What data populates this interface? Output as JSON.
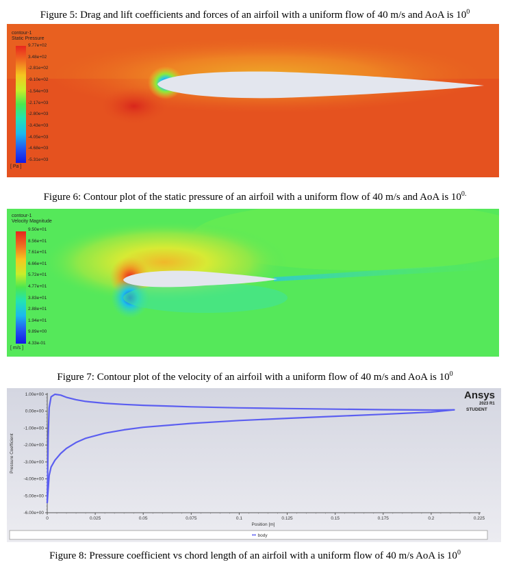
{
  "captions": {
    "fig5": {
      "text": "Figure 5: Drag and lift coefficients and forces of an airfoil with a uniform flow of 40 m/s and AoA is 10",
      "sup": "0"
    },
    "fig6": {
      "text": "Figure 6: Contour plot of the static pressure of an airfoil with a uniform flow of 40 m/s and AoA is 10",
      "sup": "0."
    },
    "fig7": {
      "text": "Figure 7: Contour plot of the velocity of an airfoil with a uniform flow of 40 m/s and AoA is 10",
      "sup": "0"
    },
    "fig8": {
      "text": "Figure 8:  Pressure coefficient vs chord length of an airfoil with a uniform flow of 40 m/s AoA is 10",
      "sup": "0"
    }
  },
  "pressure_contour": {
    "title_line1": "contour-1",
    "title_line2": "Static Pressure",
    "unit": "[ Pa ]",
    "levels": [
      "9.77e+02",
      "3.48e+02",
      "-2.81e+02",
      "-9.10e+02",
      "-1.54e+03",
      "-2.17e+03",
      "-2.80e+03",
      "-3.43e+03",
      "-4.05e+03",
      "-4.68e+03",
      "-5.31e+03"
    ],
    "colors": {
      "background": "#e5521f",
      "airfoil": "#e3e6ee"
    }
  },
  "velocity_contour": {
    "title_line1": "contour-1",
    "title_line2": "Velocity Magnitude",
    "unit": "[ m/s ]",
    "levels": [
      "9.50e+01",
      "8.56e+01",
      "7.61e+01",
      "6.66e+01",
      "5.72e+01",
      "4.77e+01",
      "3.83e+01",
      "2.88e+01",
      "1.94e+01",
      "9.89e+00",
      "4.33e-01"
    ],
    "colors": {
      "background": "#55e85a",
      "airfoil": "#e3e6ee"
    }
  },
  "chart_data": {
    "type": "line",
    "xlabel": "Position [m]",
    "ylabel": "Pressure Coefficient",
    "xlim": [
      0,
      0.225
    ],
    "ylim": [
      -6,
      1
    ],
    "x_ticks": [
      "0",
      "0.025",
      "0.05",
      "0.075",
      "0.1",
      "0.125",
      "0.15",
      "0.175",
      "0.2",
      "0.225"
    ],
    "y_ticks": [
      "1.00e+00",
      "0.00e+00",
      "-1.00e+00",
      "-2.00e+00",
      "-3.00e+00",
      "-4.00e+00",
      "-5.00e+00",
      "-6.00e+00"
    ],
    "legend": "body",
    "series": [
      {
        "name": "body",
        "upper": [
          [
            0,
            -5.4
          ],
          [
            0.001,
            -3.8
          ],
          [
            0.002,
            -3.3
          ],
          [
            0.004,
            -2.9
          ],
          [
            0.007,
            -2.5
          ],
          [
            0.01,
            -2.2
          ],
          [
            0.015,
            -1.85
          ],
          [
            0.02,
            -1.6
          ],
          [
            0.03,
            -1.3
          ],
          [
            0.04,
            -1.1
          ],
          [
            0.05,
            -0.95
          ],
          [
            0.075,
            -0.72
          ],
          [
            0.1,
            -0.55
          ],
          [
            0.125,
            -0.42
          ],
          [
            0.15,
            -0.3
          ],
          [
            0.175,
            -0.18
          ],
          [
            0.2,
            -0.05
          ],
          [
            0.212,
            0.08
          ]
        ],
        "lower": [
          [
            0,
            -5.4
          ],
          [
            0.0005,
            -1.5
          ],
          [
            0.001,
            0.2
          ],
          [
            0.002,
            0.85
          ],
          [
            0.004,
            1.0
          ],
          [
            0.007,
            0.95
          ],
          [
            0.01,
            0.82
          ],
          [
            0.015,
            0.68
          ],
          [
            0.02,
            0.58
          ],
          [
            0.03,
            0.47
          ],
          [
            0.04,
            0.4
          ],
          [
            0.05,
            0.35
          ],
          [
            0.075,
            0.26
          ],
          [
            0.1,
            0.2
          ],
          [
            0.125,
            0.16
          ],
          [
            0.15,
            0.12
          ],
          [
            0.175,
            0.09
          ],
          [
            0.2,
            0.07
          ],
          [
            0.212,
            0.08
          ]
        ]
      }
    ],
    "color": "#5b5ef0"
  },
  "ansys_badge": {
    "brand": "Ansys",
    "version": "2023 R1",
    "edition": "STUDENT"
  }
}
